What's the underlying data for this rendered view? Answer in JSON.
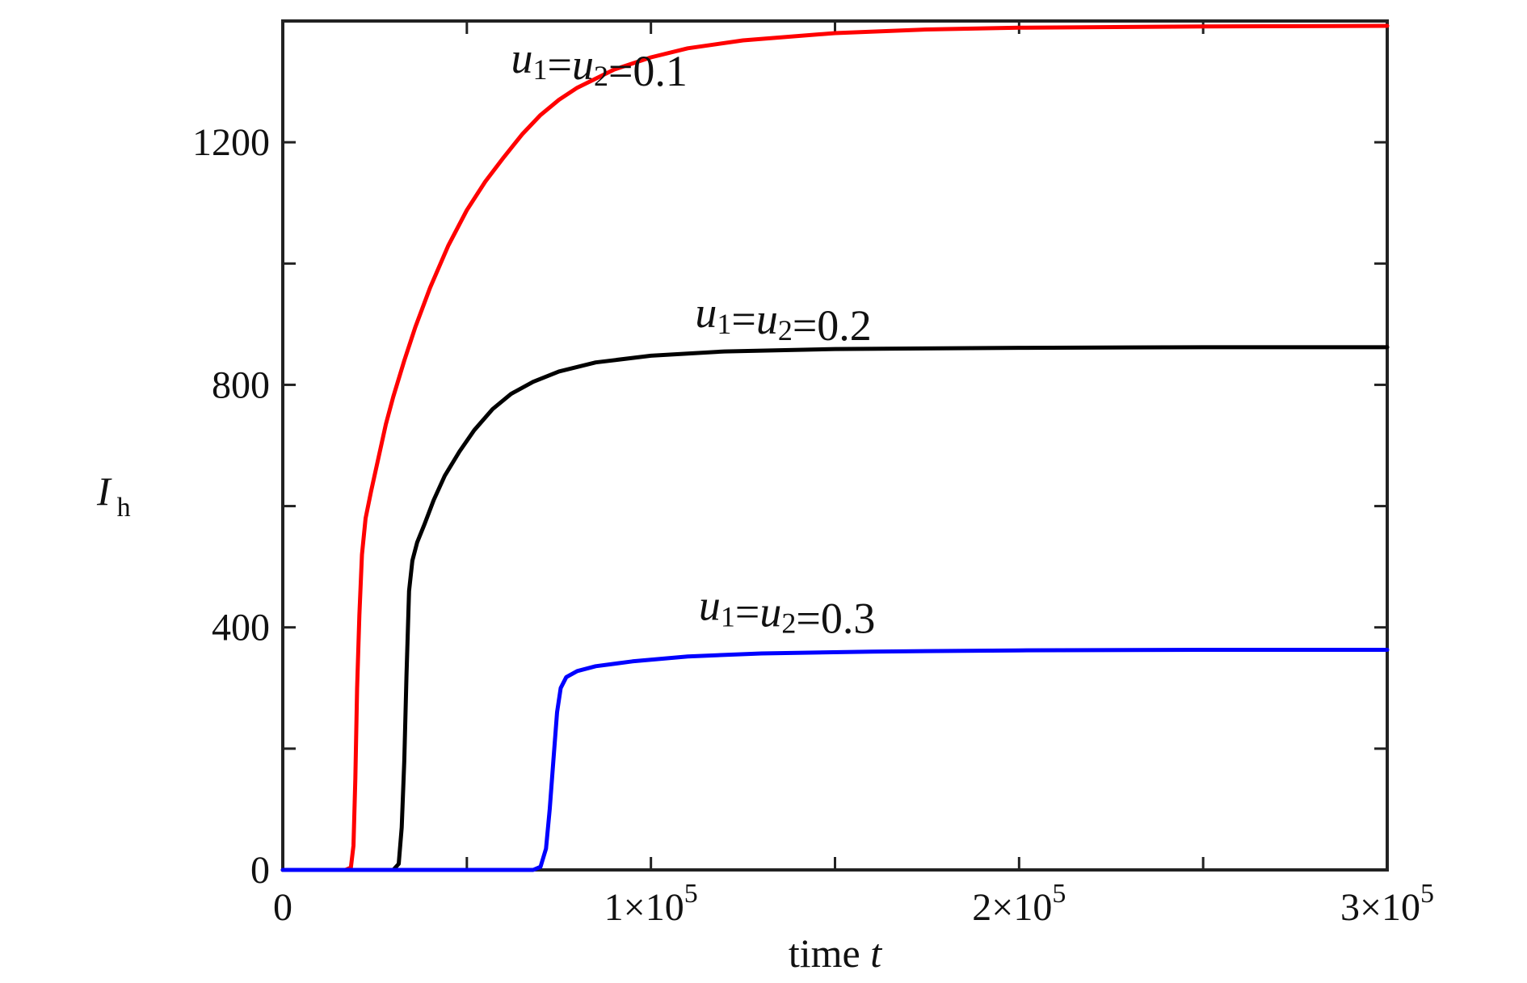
{
  "chart_data": {
    "type": "line",
    "x_tick_labels": [
      {
        "value": 0,
        "mantissa": "0",
        "exponent": ""
      },
      {
        "value": 100000,
        "mantissa": "1×10",
        "exponent": "5"
      },
      {
        "value": 200000,
        "mantissa": "2×10",
        "exponent": "5"
      },
      {
        "value": 300000,
        "mantissa": "3×10",
        "exponent": "5"
      }
    ],
    "x_minor_ticks": [
      50000,
      150000,
      250000
    ],
    "y_tick_labels": [
      {
        "value": 0,
        "label": "0"
      },
      {
        "value": 400,
        "label": "400"
      },
      {
        "value": 800,
        "label": "800"
      },
      {
        "value": 1200,
        "label": "1200"
      }
    ],
    "y_minor_ticks": [
      200,
      600,
      1000
    ],
    "xlim": [
      0,
      300000
    ],
    "ylim": [
      0,
      1400
    ],
    "xlabel": {
      "text": "time ",
      "italic": "t"
    },
    "ylabel": {
      "main": "I",
      "sub": "h"
    },
    "grid": false,
    "legend": "none",
    "series": [
      {
        "color": "#ff0000",
        "annotation": {
          "text": "u1=u2=0.1",
          "x": 62000,
          "y": 1315
        },
        "points": [
          [
            0,
            0
          ],
          [
            17000,
            0
          ],
          [
            18500,
            4
          ],
          [
            19200,
            40
          ],
          [
            19700,
            150
          ],
          [
            20200,
            300
          ],
          [
            20800,
            420
          ],
          [
            21500,
            520
          ],
          [
            22500,
            580
          ],
          [
            24000,
            625
          ],
          [
            26000,
            680
          ],
          [
            28000,
            735
          ],
          [
            30000,
            780
          ],
          [
            33000,
            840
          ],
          [
            36000,
            895
          ],
          [
            40000,
            960
          ],
          [
            45000,
            1030
          ],
          [
            50000,
            1088
          ],
          [
            55000,
            1135
          ],
          [
            60000,
            1175
          ],
          [
            65000,
            1213
          ],
          [
            70000,
            1245
          ],
          [
            75000,
            1270
          ],
          [
            80000,
            1290
          ],
          [
            90000,
            1320
          ],
          [
            100000,
            1340
          ],
          [
            110000,
            1355
          ],
          [
            125000,
            1368
          ],
          [
            150000,
            1380
          ],
          [
            175000,
            1386
          ],
          [
            200000,
            1389
          ],
          [
            250000,
            1391
          ],
          [
            300000,
            1392
          ]
        ]
      },
      {
        "color": "#000000",
        "annotation": {
          "text": "u1=u2=0.2",
          "x": 112000,
          "y": 895
        },
        "points": [
          [
            0,
            0
          ],
          [
            30000,
            0
          ],
          [
            31500,
            10
          ],
          [
            32300,
            70
          ],
          [
            33000,
            180
          ],
          [
            33600,
            320
          ],
          [
            34300,
            460
          ],
          [
            35200,
            510
          ],
          [
            36500,
            540
          ],
          [
            38500,
            570
          ],
          [
            41000,
            610
          ],
          [
            44000,
            650
          ],
          [
            48000,
            690
          ],
          [
            52000,
            725
          ],
          [
            57000,
            760
          ],
          [
            62000,
            785
          ],
          [
            68000,
            805
          ],
          [
            75000,
            822
          ],
          [
            85000,
            837
          ],
          [
            100000,
            848
          ],
          [
            120000,
            855
          ],
          [
            150000,
            859
          ],
          [
            200000,
            861
          ],
          [
            250000,
            862
          ],
          [
            300000,
            862
          ]
        ]
      },
      {
        "color": "#0000ff",
        "annotation": {
          "text": "u1=u2=0.3",
          "x": 113000,
          "y": 412
        },
        "points": [
          [
            0,
            0
          ],
          [
            68000,
            0
          ],
          [
            70000,
            5
          ],
          [
            71500,
            35
          ],
          [
            72500,
            100
          ],
          [
            73500,
            180
          ],
          [
            74500,
            260
          ],
          [
            75500,
            300
          ],
          [
            77000,
            318
          ],
          [
            80000,
            328
          ],
          [
            85000,
            336
          ],
          [
            95000,
            344
          ],
          [
            110000,
            352
          ],
          [
            130000,
            357
          ],
          [
            160000,
            360
          ],
          [
            200000,
            362
          ],
          [
            250000,
            363
          ],
          [
            300000,
            363
          ]
        ]
      }
    ]
  }
}
